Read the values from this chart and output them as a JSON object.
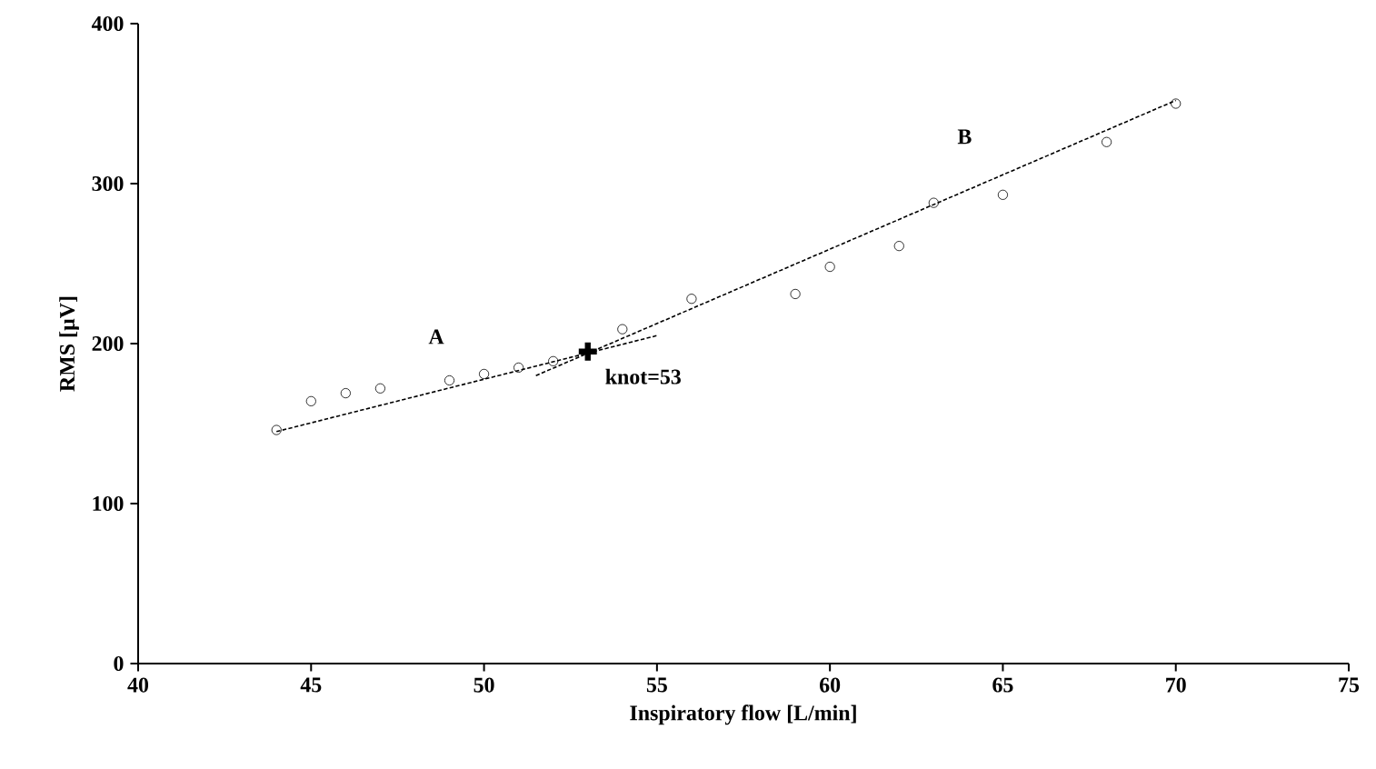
{
  "chart_data": {
    "type": "scatter",
    "xlabel": "Inspiratory flow [L/min]",
    "ylabel": "RMS [µV]",
    "xlim": [
      40,
      75
    ],
    "xticks": [
      40,
      45,
      50,
      55,
      60,
      65,
      70,
      75
    ],
    "ylim": [
      0,
      400
    ],
    "yticks": [
      0,
      100,
      200,
      300,
      400
    ],
    "grid": false,
    "series": [
      {
        "marker": "circle",
        "color": "#000000",
        "x": [
          44,
          45,
          46,
          47,
          49,
          50,
          51,
          52,
          54,
          56,
          59,
          60,
          62,
          63,
          65,
          68,
          70
        ],
        "values": [
          146,
          164,
          169,
          172,
          177,
          181,
          185,
          189,
          209,
          228,
          231,
          248,
          261,
          288,
          293,
          326,
          350
        ]
      },
      {
        "type": "line",
        "marker": "none",
        "line_style": "dashed",
        "color": "#000000",
        "x": [
          44,
          55
        ],
        "values": [
          145,
          205
        ]
      },
      {
        "type": "line",
        "marker": "none",
        "line_style": "dashed",
        "color": "#000000",
        "x": [
          51.5,
          70
        ],
        "values": [
          180,
          352
        ]
      },
      {
        "type": "scatter",
        "marker": "cross",
        "color": "#000000",
        "x": [
          53
        ],
        "values": [
          195
        ]
      }
    ],
    "annotations": [
      "A",
      "B",
      {
        "text": "knot=53",
        "x": 53,
        "y": 195
      }
    ]
  }
}
